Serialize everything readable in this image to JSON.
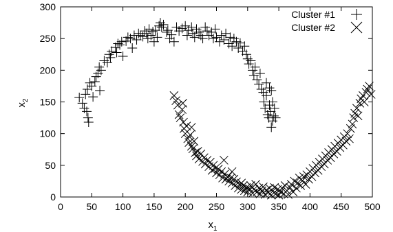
{
  "chart_data": {
    "type": "scatter",
    "xlim": [
      0,
      500
    ],
    "ylim": [
      0,
      300
    ],
    "x_ticks": [
      0,
      50,
      100,
      150,
      200,
      250,
      300,
      350,
      400,
      450,
      500
    ],
    "y_ticks": [
      0,
      50,
      100,
      150,
      200,
      250,
      300
    ],
    "xlabel_base": "x",
    "xlabel_sub": "1",
    "ylabel_base": "x",
    "ylabel_sub": "2",
    "grid": false,
    "legend_position": "top-right",
    "series": [
      {
        "name": "Cluster #1",
        "marker": "plus",
        "points": [
          [
            30,
            157
          ],
          [
            35,
            148
          ],
          [
            38,
            140
          ],
          [
            40,
            162
          ],
          [
            42,
            135
          ],
          [
            44,
            125
          ],
          [
            45,
            118
          ],
          [
            43,
            170
          ],
          [
            47,
            180
          ],
          [
            50,
            175
          ],
          [
            52,
            158
          ],
          [
            55,
            182
          ],
          [
            57,
            190
          ],
          [
            60,
            195
          ],
          [
            62,
            205
          ],
          [
            65,
            200
          ],
          [
            63,
            168
          ],
          [
            70,
            215
          ],
          [
            75,
            212
          ],
          [
            78,
            225
          ],
          [
            80,
            220
          ],
          [
            82,
            230
          ],
          [
            88,
            236
          ],
          [
            90,
            228
          ],
          [
            92,
            242
          ],
          [
            95,
            240
          ],
          [
            98,
            245
          ],
          [
            100,
            222
          ],
          [
            105,
            246
          ],
          [
            108,
            252
          ],
          [
            112,
            250
          ],
          [
            115,
            235
          ],
          [
            118,
            255
          ],
          [
            122,
            248
          ],
          [
            125,
            258
          ],
          [
            128,
            255
          ],
          [
            132,
            253
          ],
          [
            135,
            262
          ],
          [
            138,
            258
          ],
          [
            140,
            250
          ],
          [
            142,
            265
          ],
          [
            145,
            255
          ],
          [
            148,
            261
          ],
          [
            150,
            245
          ],
          [
            152,
            263
          ],
          [
            155,
            252
          ],
          [
            158,
            270
          ],
          [
            160,
            275
          ],
          [
            162,
            268
          ],
          [
            165,
            272
          ],
          [
            170,
            260
          ],
          [
            172,
            263
          ],
          [
            175,
            250
          ],
          [
            178,
            256
          ],
          [
            182,
            245
          ],
          [
            186,
            268
          ],
          [
            190,
            262
          ],
          [
            195,
            266
          ],
          [
            200,
            270
          ],
          [
            203,
            255
          ],
          [
            205,
            263
          ],
          [
            210,
            268
          ],
          [
            212,
            258
          ],
          [
            215,
            252
          ],
          [
            218,
            265
          ],
          [
            222,
            260
          ],
          [
            225,
            255
          ],
          [
            228,
            250
          ],
          [
            232,
            268
          ],
          [
            235,
            262
          ],
          [
            238,
            255
          ],
          [
            242,
            260
          ],
          [
            245,
            250
          ],
          [
            248,
            265
          ],
          [
            250,
            252
          ],
          [
            255,
            245
          ],
          [
            258,
            255
          ],
          [
            262,
            248
          ],
          [
            265,
            258
          ],
          [
            270,
            242
          ],
          [
            272,
            252
          ],
          [
            275,
            238
          ],
          [
            278,
            250
          ],
          [
            282,
            245
          ],
          [
            285,
            235
          ],
          [
            288,
            243
          ],
          [
            292,
            230
          ],
          [
            295,
            238
          ],
          [
            298,
            225
          ],
          [
            300,
            218
          ],
          [
            302,
            210
          ],
          [
            305,
            215
          ],
          [
            308,
            200
          ],
          [
            310,
            192
          ],
          [
            312,
            205
          ],
          [
            315,
            185
          ],
          [
            318,
            178
          ],
          [
            320,
            195
          ],
          [
            322,
            170
          ],
          [
            325,
            165
          ],
          [
            326,
            150
          ],
          [
            328,
            140
          ],
          [
            330,
            160
          ],
          [
            332,
            130
          ],
          [
            334,
            125
          ],
          [
            335,
            145
          ],
          [
            337,
            135
          ],
          [
            338,
            110
          ],
          [
            340,
            120
          ],
          [
            342,
            128
          ],
          [
            343,
            140
          ],
          [
            340,
            150
          ],
          [
            338,
            168
          ],
          [
            335,
            172
          ],
          [
            330,
            180
          ],
          [
            345,
            125
          ]
        ]
      },
      {
        "name": "Cluster #2",
        "marker": "x",
        "points": [
          [
            182,
            160
          ],
          [
            185,
            152
          ],
          [
            188,
            145
          ],
          [
            190,
            130
          ],
          [
            192,
            125
          ],
          [
            195,
            138
          ],
          [
            197,
            118
          ],
          [
            198,
            108
          ],
          [
            200,
            100
          ],
          [
            202,
            112
          ],
          [
            204,
            92
          ],
          [
            206,
            86
          ],
          [
            208,
            98
          ],
          [
            210,
            80
          ],
          [
            212,
            76
          ],
          [
            214,
            88
          ],
          [
            216,
            70
          ],
          [
            218,
            65
          ],
          [
            220,
            72
          ],
          [
            222,
            60
          ],
          [
            225,
            68
          ],
          [
            228,
            56
          ],
          [
            230,
            62
          ],
          [
            232,
            52
          ],
          [
            235,
            58
          ],
          [
            238,
            48
          ],
          [
            240,
            55
          ],
          [
            243,
            42
          ],
          [
            245,
            50
          ],
          [
            248,
            45
          ],
          [
            250,
            38
          ],
          [
            253,
            44
          ],
          [
            255,
            35
          ],
          [
            258,
            40
          ],
          [
            260,
            30
          ],
          [
            263,
            36
          ],
          [
            265,
            28
          ],
          [
            268,
            32
          ],
          [
            270,
            25
          ],
          [
            273,
            30
          ],
          [
            275,
            22
          ],
          [
            278,
            28
          ],
          [
            280,
            18
          ],
          [
            282,
            24
          ],
          [
            285,
            14
          ],
          [
            288,
            20
          ],
          [
            290,
            12
          ],
          [
            293,
            18
          ],
          [
            295,
            10
          ],
          [
            298,
            15
          ],
          [
            300,
            8
          ],
          [
            303,
            13
          ],
          [
            305,
            18
          ],
          [
            308,
            6
          ],
          [
            310,
            12
          ],
          [
            313,
            20
          ],
          [
            315,
            8
          ],
          [
            318,
            14
          ],
          [
            320,
            5
          ],
          [
            323,
            10
          ],
          [
            325,
            16
          ],
          [
            328,
            4
          ],
          [
            330,
            11
          ],
          [
            333,
            7
          ],
          [
            335,
            14
          ],
          [
            338,
            3
          ],
          [
            340,
            9
          ],
          [
            343,
            15
          ],
          [
            345,
            5
          ],
          [
            348,
            12
          ],
          [
            350,
            3
          ],
          [
            353,
            8
          ],
          [
            355,
            14
          ],
          [
            358,
            5
          ],
          [
            360,
            18
          ],
          [
            363,
            10
          ],
          [
            365,
            4
          ],
          [
            368,
            15
          ],
          [
            370,
            20
          ],
          [
            373,
            8
          ],
          [
            375,
            25
          ],
          [
            378,
            14
          ],
          [
            380,
            22
          ],
          [
            383,
            30
          ],
          [
            385,
            18
          ],
          [
            388,
            26
          ],
          [
            390,
            32
          ],
          [
            393,
            20
          ],
          [
            395,
            35
          ],
          [
            398,
            28
          ],
          [
            400,
            40
          ],
          [
            403,
            32
          ],
          [
            405,
            45
          ],
          [
            408,
            38
          ],
          [
            410,
            50
          ],
          [
            413,
            42
          ],
          [
            415,
            55
          ],
          [
            418,
            48
          ],
          [
            420,
            60
          ],
          [
            423,
            52
          ],
          [
            425,
            65
          ],
          [
            428,
            58
          ],
          [
            430,
            70
          ],
          [
            433,
            62
          ],
          [
            435,
            75
          ],
          [
            438,
            68
          ],
          [
            440,
            80
          ],
          [
            443,
            72
          ],
          [
            445,
            85
          ],
          [
            448,
            78
          ],
          [
            450,
            90
          ],
          [
            453,
            82
          ],
          [
            455,
            95
          ],
          [
            458,
            88
          ],
          [
            460,
            100
          ],
          [
            463,
            92
          ],
          [
            465,
            108
          ],
          [
            468,
            115
          ],
          [
            470,
            125
          ],
          [
            472,
            132
          ],
          [
            475,
            140
          ],
          [
            477,
            128
          ],
          [
            480,
            148
          ],
          [
            482,
            155
          ],
          [
            485,
            160
          ],
          [
            487,
            150
          ],
          [
            490,
            165
          ],
          [
            492,
            170
          ],
          [
            495,
            175
          ],
          [
            498,
            162
          ],
          [
            262,
            58
          ],
          [
            275,
            40
          ],
          [
            290,
            22
          ],
          [
            196,
            148
          ],
          [
            210,
            110
          ]
        ]
      }
    ]
  }
}
